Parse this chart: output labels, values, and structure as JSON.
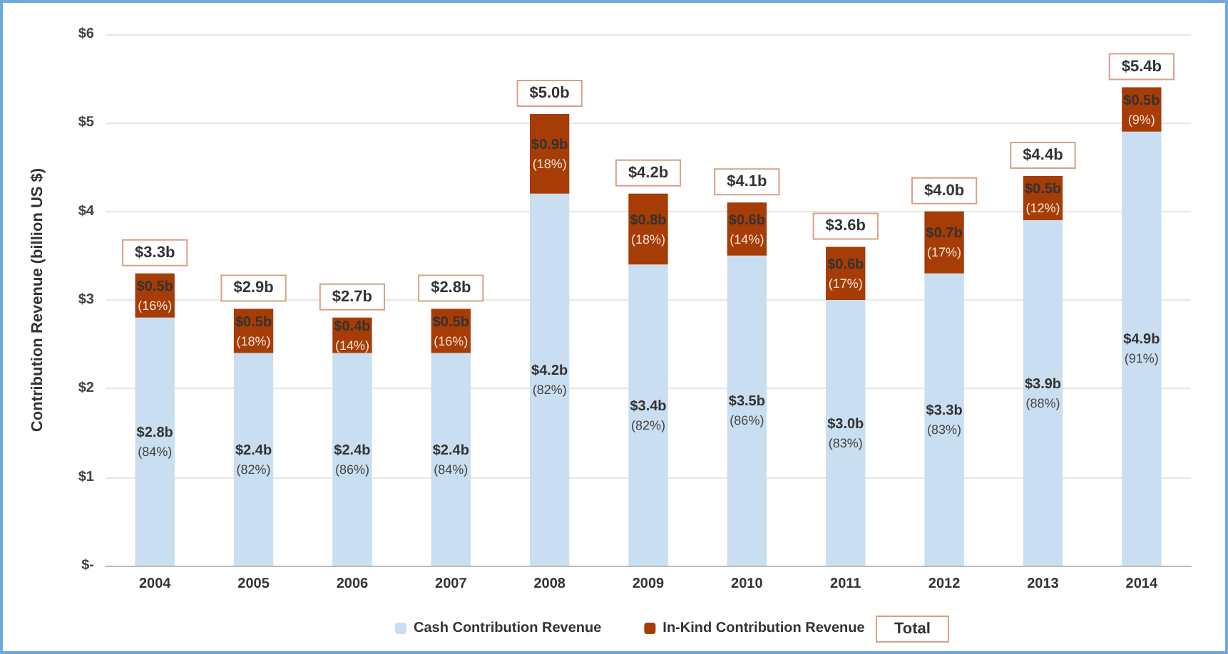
{
  "chart_data": {
    "type": "bar",
    "stacked": true,
    "ylabel": "Contribution Revenue (billion US $)",
    "categories": [
      "2004",
      "2005",
      "2006",
      "2007",
      "2008",
      "2009",
      "2010",
      "2011",
      "2012",
      "2013",
      "2014"
    ],
    "series": [
      {
        "name": "Cash Contribution Revenue",
        "color": "#c9def0",
        "values": [
          2.8,
          2.4,
          2.4,
          2.4,
          4.2,
          3.4,
          3.5,
          3.0,
          3.3,
          3.9,
          4.9
        ],
        "value_labels": [
          "$2.8b",
          "$2.4b",
          "$2.4b",
          "$2.4b",
          "$4.2b",
          "$3.4b",
          "$3.5b",
          "$3.0b",
          "$3.3b",
          "$3.9b",
          "$4.9b"
        ]
      },
      {
        "name": "In-Kind Contribution Revenue",
        "color": "#a63c06",
        "values": [
          0.5,
          0.5,
          0.4,
          0.5,
          0.9,
          0.8,
          0.6,
          0.6,
          0.7,
          0.5,
          0.5
        ],
        "value_labels": [
          "$0.5b",
          "$0.5b",
          "$0.4b",
          "$0.5b",
          "$0.9b",
          "$0.8b",
          "$0.6b",
          "$0.6b",
          "$0.7b",
          "$0.5b",
          "$0.5b"
        ]
      }
    ],
    "totals": [
      "$3.3b",
      "$2.9b",
      "$2.7b",
      "$2.8b",
      "$5.0b",
      "$4.2b",
      "$4.1b",
      "$3.6b",
      "$4.0b",
      "$4.4b",
      "$5.4b"
    ],
    "annotations": [
      "Total",
      "(84%)",
      "(82%)",
      "(86%)",
      "(84%)",
      "(82%)",
      "(82%)",
      "(86%)",
      "(83%)",
      "(83%)",
      "(88%)",
      "(91%)",
      "(16%)",
      "(18%)",
      "(14%)",
      "(16%)",
      "(18%)",
      "(18%)",
      "(14%)",
      "(17%)",
      "(17%)",
      "(12%)",
      "(9%)"
    ],
    "ylim": [
      0,
      6
    ],
    "yticks": [
      {
        "value": 0,
        "label": "$-"
      },
      {
        "value": 1,
        "label": "$1"
      },
      {
        "value": 2,
        "label": "$2"
      },
      {
        "value": 3,
        "label": "$3"
      },
      {
        "value": 4,
        "label": "$4"
      },
      {
        "value": 5,
        "label": "$5"
      },
      {
        "value": 6,
        "label": "$6"
      }
    ],
    "grid": "y",
    "legend": "bottom"
  }
}
